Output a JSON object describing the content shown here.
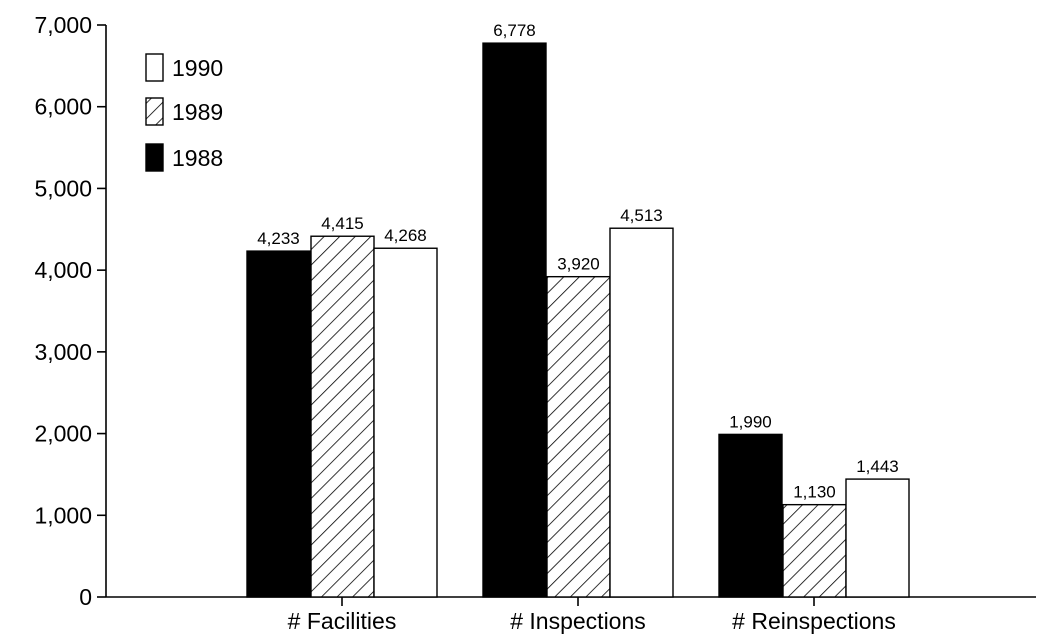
{
  "chart_data": {
    "type": "bar",
    "categories": [
      "# Facilities",
      "# Inspections",
      "# Reinspections"
    ],
    "series": [
      {
        "name": "1988",
        "values": [
          4233,
          6778,
          1990
        ],
        "value_labels": [
          "4,233",
          "6,778",
          "1,990"
        ],
        "fill": "solid",
        "color": "#000000"
      },
      {
        "name": "1989",
        "values": [
          4415,
          3920,
          1130
        ],
        "value_labels": [
          "4,415",
          "3,920",
          "1,130"
        ],
        "fill": "hatched",
        "color": "#000000"
      },
      {
        "name": "1990",
        "values": [
          4268,
          4513,
          1443
        ],
        "value_labels": [
          "4,268",
          "4,513",
          "1,443"
        ],
        "fill": "empty",
        "color": "#000000"
      }
    ],
    "legend_order": [
      "1990",
      "1989",
      "1988"
    ],
    "legend_position": "top-left",
    "ylim": [
      0,
      7000
    ],
    "yticks": [
      0,
      1000,
      2000,
      3000,
      4000,
      5000,
      6000,
      7000
    ],
    "ytick_labels": [
      "0",
      "1,000",
      "2,000",
      "3,000",
      "4,000",
      "5,000",
      "6,000",
      "7,000"
    ],
    "grid": false
  }
}
